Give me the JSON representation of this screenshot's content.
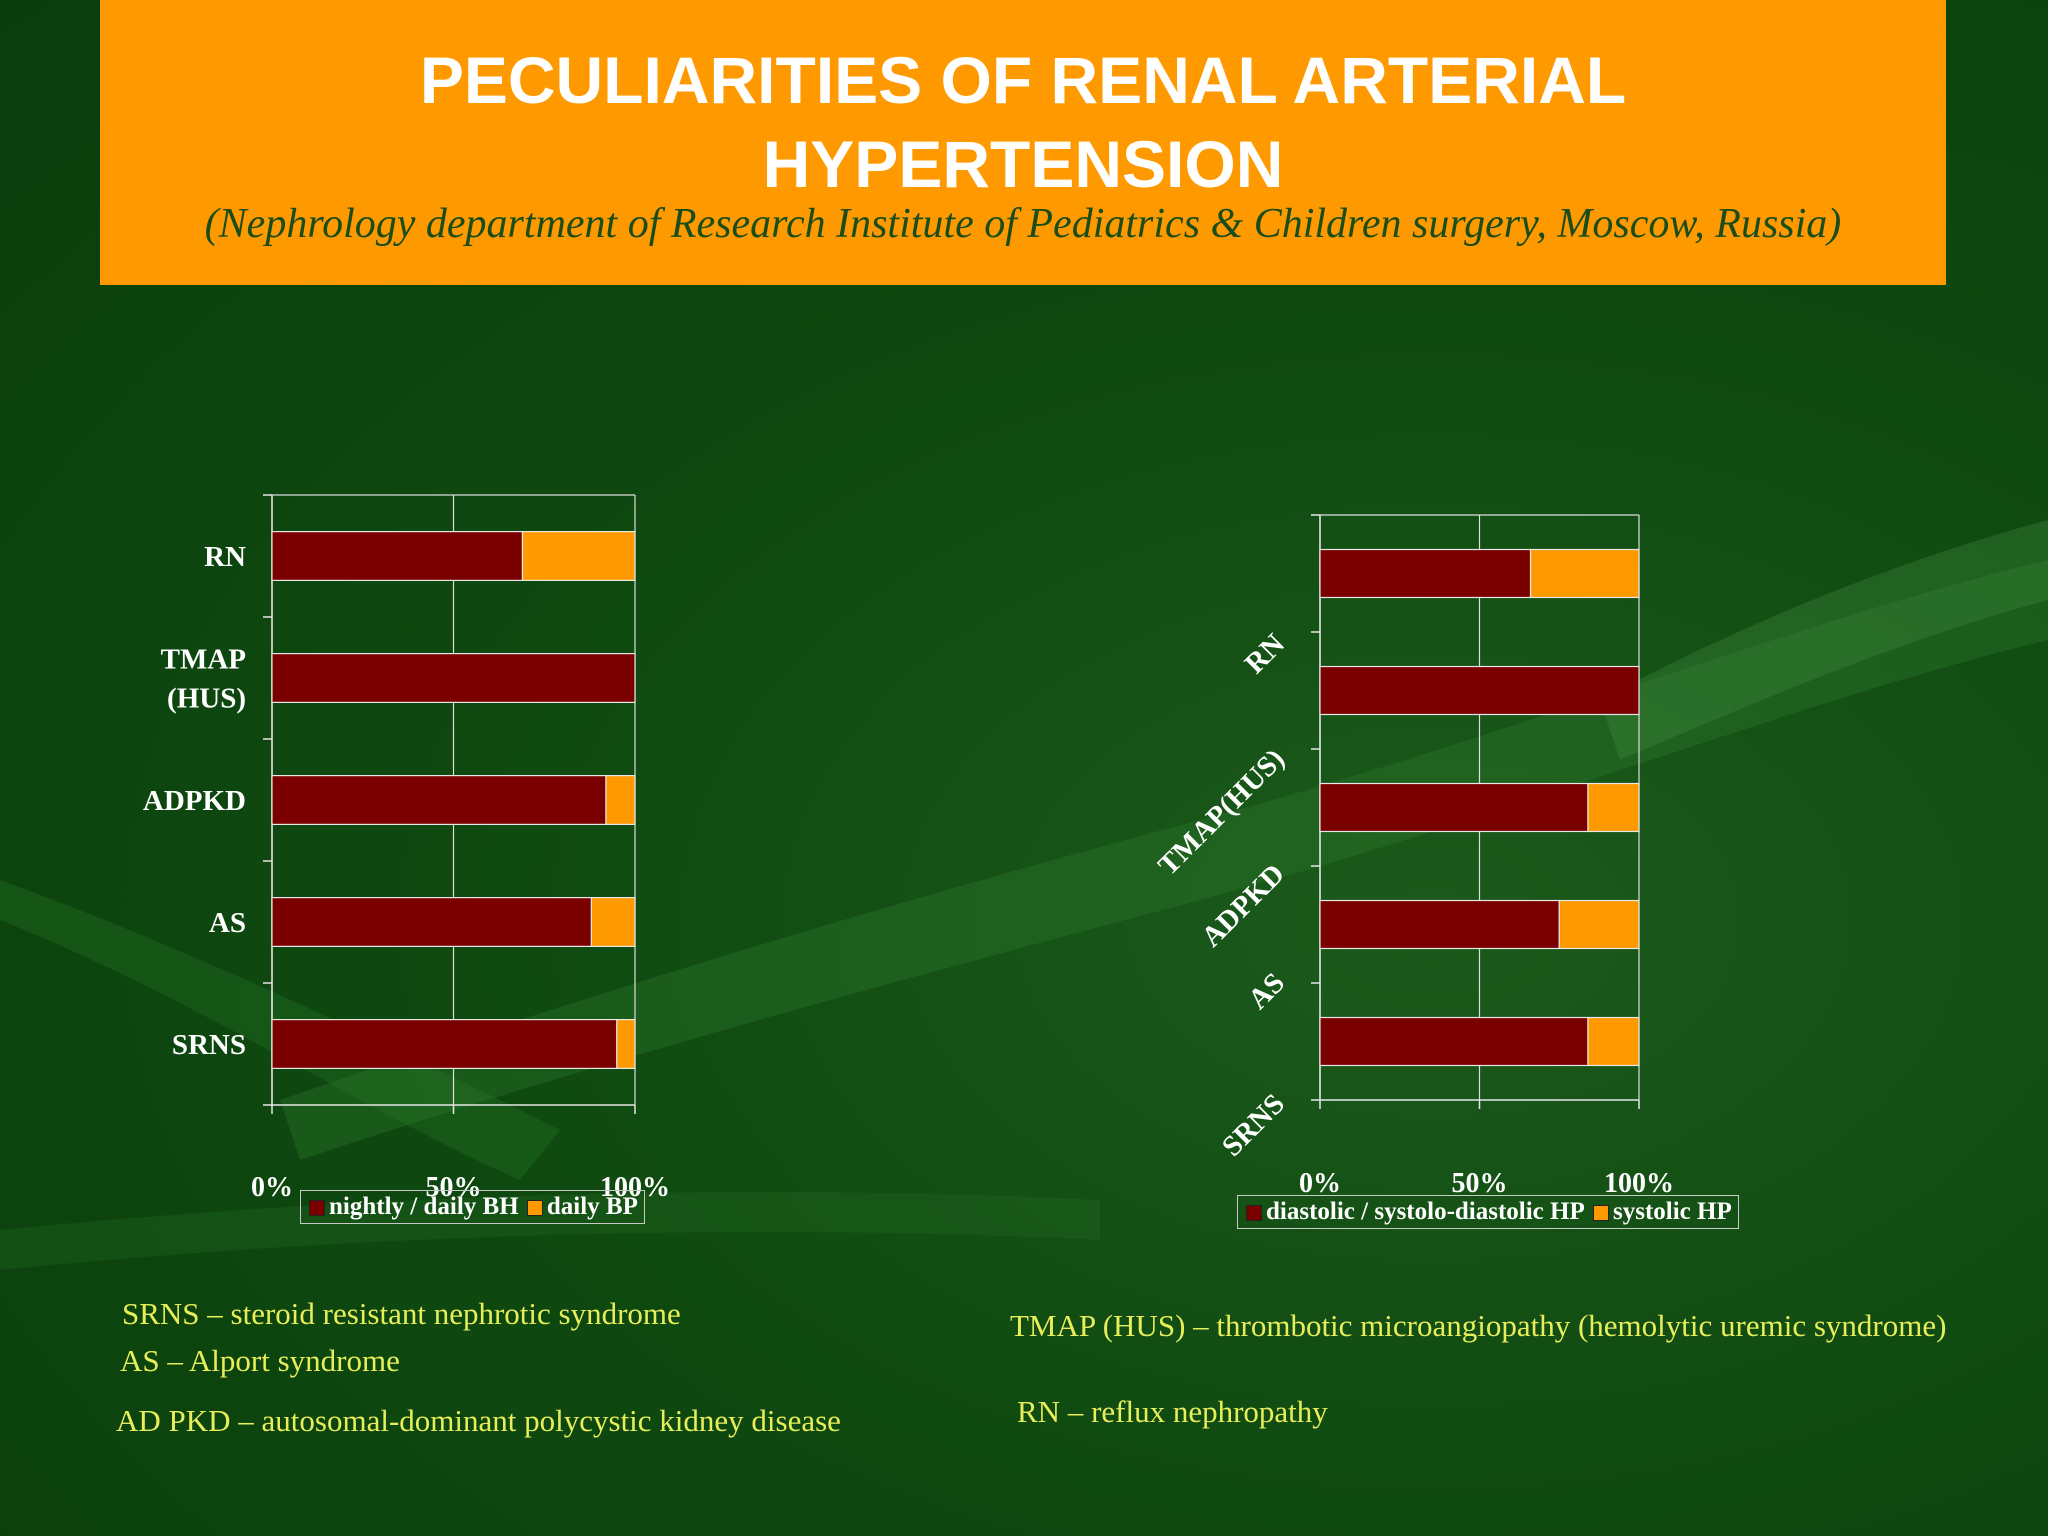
{
  "header": {
    "title_line1": "PECULIARITIES OF RENAL ARTERIAL",
    "title_line2": "HYPERTENSION",
    "subtitle": "(Nephrology department of Research Institute of Pediatrics & Children surgery, Moscow,  Russia)"
  },
  "colors": {
    "banner": "#ff9900",
    "series_primary": "#7a0000",
    "series_secondary": "#ff9900",
    "notes_text": "#e8ee5a"
  },
  "chart_data": [
    {
      "type": "bar",
      "orientation": "horizontal",
      "stacked": "percent",
      "categories": [
        [
          "RN"
        ],
        [
          "TMAP",
          "(HUS)"
        ],
        [
          "ADPKD"
        ],
        [
          "AS"
        ],
        [
          "SRNS"
        ]
      ],
      "series": [
        {
          "name": "nightly / daily BH",
          "values": [
            69,
            100,
            92,
            88,
            95
          ]
        },
        {
          "name": "daily BP",
          "values": [
            31,
            0,
            8,
            12,
            5
          ]
        }
      ],
      "xticks": [
        "0%",
        "50%",
        "100%"
      ],
      "xlim": [
        0,
        100
      ],
      "grid": true,
      "legend": "bottom"
    },
    {
      "type": "bar",
      "orientation": "horizontal",
      "stacked": "percent",
      "categories": [
        [
          "RN"
        ],
        [
          "TMAP(HUS)"
        ],
        [
          "ADPKD"
        ],
        [
          "AS"
        ],
        [
          "SRNS"
        ]
      ],
      "series": [
        {
          "name": "diastolic / systolo-diastolic HP",
          "values": [
            66,
            100,
            84,
            75,
            84
          ]
        },
        {
          "name": "systolic HP",
          "values": [
            34,
            0,
            16,
            25,
            16
          ]
        }
      ],
      "xticks": [
        "0%",
        "50%",
        "100%"
      ],
      "xlim": [
        0,
        100
      ],
      "grid": true,
      "legend": "bottom",
      "category_labels_rotated": true
    }
  ],
  "notes": {
    "srns": "SRNS – steroid resistant nephrotic syndrome",
    "as": "AS – Alport syndrome",
    "adpkd": "AD PKD – autosomal-dominant polycystic kidney disease",
    "tmap": "TMAP (HUS) – thrombotic microangiopathy (hemolytic uremic syndrome)",
    "rn": "RN – reflux nephropathy"
  }
}
